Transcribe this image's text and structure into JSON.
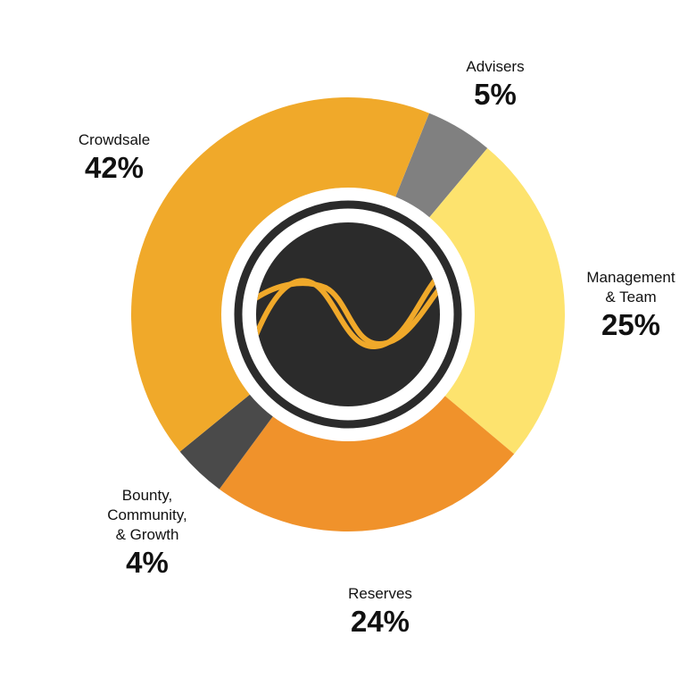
{
  "chart_data": {
    "type": "pie",
    "categories": [
      "Advisers",
      "Management\n& Team",
      "Reserves",
      "Bounty,\nCommunity,\n& Growth",
      "Crowdsale"
    ],
    "values": [
      5,
      25,
      24,
      4,
      42
    ],
    "value_labels": [
      "5%",
      "25%",
      "24%",
      "4%",
      "42%"
    ],
    "colors": [
      "#808080",
      "#fde36e",
      "#f0922b",
      "#4a4a4a",
      "#f0a92a"
    ]
  }
}
